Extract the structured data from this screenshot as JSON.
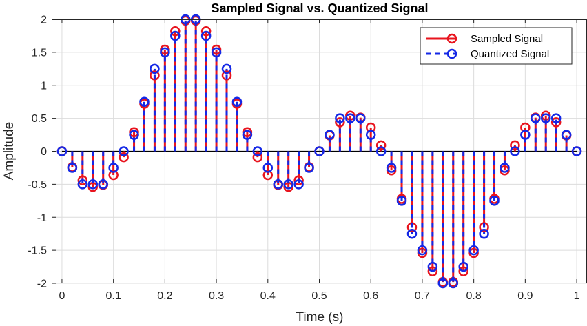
{
  "chart_data": {
    "type": "stem",
    "title": "Sampled Signal vs. Quantized Signal",
    "xlabel": "Time (s)",
    "ylabel": "Amplitude",
    "xlim": [
      -0.02,
      1.02
    ],
    "ylim": [
      -2,
      2
    ],
    "xticks": [
      0,
      0.1,
      0.2,
      0.3,
      0.4,
      0.5,
      0.6,
      0.7,
      0.8,
      0.9,
      1
    ],
    "xtick_labels": [
      "0",
      "0.1",
      "0.2",
      "0.3",
      "0.4",
      "0.5",
      "0.6",
      "0.7",
      "0.8",
      "0.9",
      "1"
    ],
    "yticks": [
      -2,
      -1.5,
      -1,
      -0.5,
      0,
      0.5,
      1,
      1.5,
      2
    ],
    "ytick_labels": [
      "-2",
      "-1.5",
      "-1",
      "-0.5",
      "0",
      "0.5",
      "1",
      "1.5",
      "2"
    ],
    "grid": true,
    "legend_position": "top-right",
    "x": [
      0,
      0.02,
      0.04,
      0.06,
      0.08,
      0.1,
      0.12,
      0.14,
      0.16,
      0.18,
      0.2,
      0.22,
      0.24,
      0.26,
      0.28,
      0.3,
      0.32,
      0.34,
      0.36,
      0.38,
      0.4,
      0.42,
      0.44,
      0.46,
      0.48,
      0.5,
      0.52,
      0.54,
      0.56,
      0.58,
      0.6,
      0.62,
      0.64,
      0.66,
      0.68,
      0.7,
      0.72,
      0.74,
      0.76,
      0.78,
      0.8,
      0.82,
      0.84,
      0.86,
      0.88,
      0.9,
      0.92,
      0.94,
      0.96,
      0.98,
      1
    ],
    "series": [
      {
        "name": "Sampled Signal",
        "color": "#e8141e",
        "line_style": "solid",
        "values": [
          0,
          -0.24,
          -0.44,
          -0.54,
          -0.51,
          -0.36,
          -0.09,
          0.29,
          0.72,
          1.15,
          1.54,
          1.82,
          1.98,
          1.98,
          1.82,
          1.54,
          1.15,
          0.72,
          0.29,
          -0.09,
          -0.36,
          -0.51,
          -0.54,
          -0.44,
          -0.24,
          0,
          0.24,
          0.44,
          0.54,
          0.51,
          0.36,
          0.09,
          -0.29,
          -0.72,
          -1.15,
          -1.54,
          -1.82,
          -1.98,
          -1.98,
          -1.82,
          -1.54,
          -1.15,
          -0.72,
          -0.29,
          0.09,
          0.36,
          0.51,
          0.54,
          0.44,
          0.24,
          0
        ]
      },
      {
        "name": "Quantized Signal",
        "color": "#1428e6",
        "line_style": "dashed",
        "values": [
          0,
          -0.25,
          -0.5,
          -0.5,
          -0.5,
          -0.25,
          0,
          0.25,
          0.75,
          1.25,
          1.5,
          1.75,
          2,
          2,
          1.75,
          1.5,
          1.25,
          0.75,
          0.25,
          0,
          -0.25,
          -0.5,
          -0.5,
          -0.5,
          -0.25,
          0,
          0.25,
          0.5,
          0.5,
          0.5,
          0.25,
          0,
          -0.25,
          -0.75,
          -1.25,
          -1.5,
          -1.75,
          -2,
          -2,
          -1.75,
          -1.5,
          -1.25,
          -0.75,
          -0.25,
          0,
          0.25,
          0.5,
          0.5,
          0.5,
          0.25,
          0
        ]
      }
    ]
  }
}
